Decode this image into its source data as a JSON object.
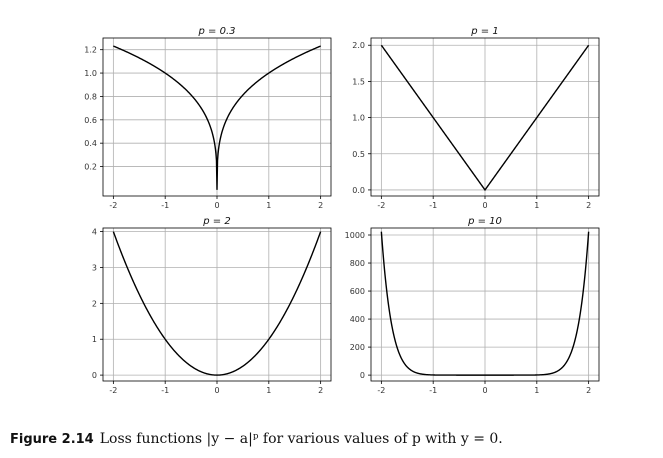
{
  "chart_data": [
    {
      "type": "line",
      "title": "p = 0.3",
      "p": 0.3,
      "xlim": [
        -2,
        2
      ],
      "ylim": [
        0,
        1.3
      ],
      "xticks": [
        "-2",
        "-1",
        "0",
        "1",
        "2"
      ],
      "yticks": [
        "0.2",
        "0.4",
        "0.6",
        "0.8",
        "1.0",
        "1.2"
      ],
      "ytick_values": [
        0.2,
        0.4,
        0.6,
        0.8,
        1.0,
        1.2
      ],
      "grid": true,
      "series": [
        {
          "points": [
            [
              -2,
              1.231
            ],
            [
              -1.5,
              1.129
            ],
            [
              -1,
              1.0
            ],
            [
              -0.5,
              0.812
            ],
            [
              -0.25,
              0.66
            ],
            [
              -0.05,
              0.407
            ],
            [
              0,
              0.0
            ],
            [
              0.05,
              0.407
            ],
            [
              0.25,
              0.66
            ],
            [
              0.5,
              0.812
            ],
            [
              1,
              1.0
            ],
            [
              1.5,
              1.129
            ],
            [
              2,
              1.231
            ]
          ]
        }
      ],
      "color": "#000000"
    },
    {
      "type": "line",
      "title": "p = 1",
      "p": 1,
      "xlim": [
        -2,
        2
      ],
      "ylim": [
        0,
        2.1
      ],
      "xticks": [
        "-2",
        "-1",
        "0",
        "1",
        "2"
      ],
      "yticks": [
        "0.0",
        "0.5",
        "1.0",
        "1.5",
        "2.0"
      ],
      "ytick_values": [
        0.0,
        0.5,
        1.0,
        1.5,
        2.0
      ],
      "grid": true,
      "series": [
        {
          "points": [
            [
              -2,
              2.0
            ],
            [
              -1,
              1.0
            ],
            [
              0,
              0.0
            ],
            [
              1,
              1.0
            ],
            [
              2,
              2.0
            ]
          ]
        }
      ],
      "color": "#000000"
    },
    {
      "type": "line",
      "title": "p = 2",
      "p": 2,
      "xlim": [
        -2,
        2
      ],
      "ylim": [
        0,
        4.1
      ],
      "xticks": [
        "-2",
        "-1",
        "0",
        "1",
        "2"
      ],
      "yticks": [
        "0",
        "1",
        "2",
        "3",
        "4"
      ],
      "ytick_values": [
        0,
        1,
        2,
        3,
        4
      ],
      "grid": true,
      "series": [
        {
          "points": [
            [
              -2,
              4.0
            ],
            [
              -1.5,
              2.25
            ],
            [
              -1,
              1.0
            ],
            [
              -0.5,
              0.25
            ],
            [
              0,
              0.0
            ],
            [
              0.5,
              0.25
            ],
            [
              1,
              1.0
            ],
            [
              1.5,
              2.25
            ],
            [
              2,
              4.0
            ]
          ]
        }
      ],
      "color": "#000000"
    },
    {
      "type": "line",
      "title": "p = 10",
      "p": 10,
      "xlim": [
        -2,
        2
      ],
      "ylim": [
        0,
        1050
      ],
      "xticks": [
        "-2",
        "-1",
        "0",
        "1",
        "2"
      ],
      "yticks": [
        "0",
        "200",
        "400",
        "600",
        "800",
        "1000"
      ],
      "ytick_values": [
        0,
        200,
        400,
        600,
        800,
        1000
      ],
      "grid": true,
      "series": [
        {
          "points": [
            [
              -2,
              1024
            ],
            [
              -1.8,
              357
            ],
            [
              -1.6,
              110
            ],
            [
              -1.4,
              28.9
            ],
            [
              -1.2,
              6.2
            ],
            [
              -1,
              1.0
            ],
            [
              0,
              0.0
            ],
            [
              1,
              1.0
            ],
            [
              1.2,
              6.2
            ],
            [
              1.4,
              28.9
            ],
            [
              1.6,
              110
            ],
            [
              1.8,
              357
            ],
            [
              2,
              1024
            ]
          ]
        }
      ],
      "color": "#000000"
    }
  ],
  "caption": {
    "label": "Figure 2.14",
    "text": "Loss functions |y − a|ᵖ for various values of p with y = 0."
  }
}
